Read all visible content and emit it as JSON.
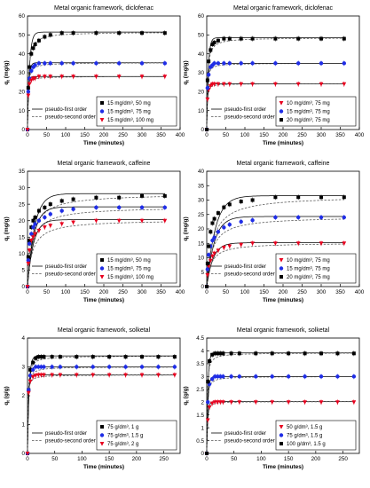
{
  "figure": {
    "panel_count": 6
  },
  "chart_data": [
    {
      "type": "scatter",
      "title": "Metal organic framework, diclofenac",
      "xlabel": "Time (minutes)",
      "ylabel": "qt (mg/g)",
      "ylabel_main": "q",
      "ylabel_sub": "t",
      "ylabel_unit": " (mg/g)",
      "xlim": [
        0,
        400
      ],
      "ylim": [
        0,
        60
      ],
      "xticks": [
        0,
        50,
        100,
        150,
        200,
        250,
        300,
        350,
        400
      ],
      "yticks": [
        0,
        10,
        20,
        30,
        40,
        50,
        60
      ],
      "legend_position": "bottom-right",
      "legend_models": [
        "pseudo-first order",
        "pseudo-second order"
      ],
      "series": [
        {
          "name": "15 mg/dm³, 50 mg",
          "marker": "square",
          "color": "#000000",
          "x": [
            0,
            2,
            5,
            10,
            15,
            20,
            30,
            45,
            60,
            90,
            120,
            180,
            240,
            300,
            360
          ],
          "y": [
            0,
            22,
            33,
            40,
            43,
            45,
            47,
            49,
            50,
            51,
            51,
            51,
            51,
            51,
            51
          ],
          "qe": 51.5,
          "k1": 0.19,
          "k2": 0.0075
        },
        {
          "name": "15 mg/dm³, 75 mg",
          "marker": "circle",
          "color": "#1f2de6",
          "x": [
            0,
            2,
            5,
            10,
            15,
            20,
            30,
            45,
            60,
            90,
            120,
            180,
            240,
            300,
            360
          ],
          "y": [
            0,
            20,
            27,
            31,
            33,
            34,
            35,
            35,
            35,
            35,
            35,
            35,
            35,
            35,
            35
          ],
          "qe": 35.3,
          "k1": 0.3,
          "k2": 0.018
        },
        {
          "name": "15 mg/dm³, 100 mg",
          "marker": "triangle-down",
          "color": "#e8001e",
          "x": [
            0,
            2,
            5,
            10,
            15,
            20,
            30,
            45,
            60,
            90,
            120,
            180,
            240,
            300,
            360
          ],
          "y": [
            0,
            18,
            24,
            26,
            27,
            27,
            28,
            28,
            28,
            28,
            28,
            28,
            28,
            28,
            28
          ],
          "qe": 28,
          "k1": 0.45,
          "k2": 0.035
        }
      ]
    },
    {
      "type": "scatter",
      "title": "Metal organic framework, diclofenac",
      "xlabel": "Time (minutes)",
      "ylabel": "qt (mg/g)",
      "ylabel_main": "q",
      "ylabel_sub": "t",
      "ylabel_unit": " (mg/g)",
      "xlim": [
        0,
        400
      ],
      "ylim": [
        0,
        60
      ],
      "xticks": [
        0,
        50,
        100,
        150,
        200,
        250,
        300,
        350,
        400
      ],
      "yticks": [
        0,
        10,
        20,
        30,
        40,
        50,
        60
      ],
      "legend_position": "bottom-right",
      "legend_models": [
        "pseudo-first order",
        "pseudo-second order"
      ],
      "series": [
        {
          "name": "10 mg/dm³, 75 mg",
          "marker": "triangle-down",
          "color": "#e8001e",
          "x": [
            0,
            2,
            5,
            10,
            15,
            20,
            30,
            45,
            60,
            90,
            120,
            180,
            240,
            300,
            360
          ],
          "y": [
            0,
            16,
            21,
            23,
            24,
            24,
            24,
            24,
            24,
            24,
            24,
            24,
            24,
            24,
            24
          ],
          "qe": 24.2,
          "k1": 0.45,
          "k2": 0.05
        },
        {
          "name": "15 mg/dm³, 75 mg",
          "marker": "circle",
          "color": "#1f2de6",
          "x": [
            0,
            2,
            5,
            10,
            15,
            20,
            30,
            45,
            60,
            90,
            120,
            180,
            240,
            300,
            360
          ],
          "y": [
            0,
            22,
            29,
            33,
            34,
            35,
            35,
            35,
            35,
            35,
            35,
            35,
            35,
            35,
            35
          ],
          "qe": 35,
          "k1": 0.35,
          "k2": 0.025
        },
        {
          "name": "20 mg/dm³, 75 mg",
          "marker": "square",
          "color": "#000000",
          "x": [
            0,
            2,
            5,
            10,
            15,
            20,
            30,
            45,
            60,
            90,
            120,
            180,
            240,
            300,
            360
          ],
          "y": [
            0,
            26,
            36,
            42,
            45,
            46,
            47,
            48,
            48,
            48,
            48,
            48,
            48,
            48,
            48
          ],
          "qe": 48.5,
          "k1": 0.25,
          "k2": 0.01
        }
      ]
    },
    {
      "type": "scatter",
      "title": "Metal organic framework, caffeine",
      "xlabel": "Time (minutes)",
      "ylabel": "qt (mg/g)",
      "ylabel_main": "q",
      "ylabel_sub": "t",
      "ylabel_unit": " (mg/g)",
      "xlim": [
        0,
        400
      ],
      "ylim": [
        0,
        35
      ],
      "xticks": [
        0,
        50,
        100,
        150,
        200,
        250,
        300,
        350,
        400
      ],
      "yticks": [
        0,
        5,
        10,
        15,
        20,
        25,
        30,
        35
      ],
      "legend_position": "bottom-right",
      "legend_models": [
        "pseudo-first order",
        "pseudo-second order"
      ],
      "series": [
        {
          "name": "15 mg/dm³, 50 mg",
          "marker": "square",
          "color": "#000000",
          "x": [
            0,
            2,
            5,
            10,
            15,
            20,
            30,
            45,
            60,
            90,
            120,
            180,
            240,
            300,
            360
          ],
          "y": [
            0,
            9,
            14,
            18,
            20,
            21,
            23,
            24,
            25,
            26,
            26.5,
            27,
            27,
            27.5,
            27.5
          ],
          "qe": 28.2,
          "k1": 0.055,
          "k2": 0.003
        },
        {
          "name": "15 mg/dm³, 75 mg",
          "marker": "circle",
          "color": "#1f2de6",
          "x": [
            0,
            2,
            5,
            10,
            15,
            20,
            30,
            45,
            60,
            90,
            120,
            180,
            240,
            300,
            360
          ],
          "y": [
            0,
            8,
            13,
            16,
            18,
            19,
            20,
            21,
            22,
            23,
            23.5,
            24,
            24,
            24,
            24
          ],
          "qe": 24.2,
          "k1": 0.06,
          "k2": 0.0035
        },
        {
          "name": "15 mg/dm³, 100 mg",
          "marker": "triangle-down",
          "color": "#e8001e",
          "x": [
            0,
            2,
            5,
            10,
            15,
            20,
            30,
            45,
            60,
            90,
            120,
            180,
            240,
            300,
            360
          ],
          "y": [
            0,
            7,
            11,
            14,
            15,
            16,
            17,
            18,
            18.5,
            19,
            19.5,
            20,
            20,
            20,
            20
          ],
          "qe": 20.3,
          "k1": 0.065,
          "k2": 0.004
        }
      ]
    },
    {
      "type": "scatter",
      "title": "Metal organic framework, caffeine",
      "xlabel": "Time (minutes)",
      "ylabel": "qt (mg/g)",
      "ylabel_main": "q",
      "ylabel_sub": "t",
      "ylabel_unit": " (mg/g)",
      "xlim": [
        0,
        400
      ],
      "ylim": [
        0,
        40
      ],
      "xticks": [
        0,
        50,
        100,
        150,
        200,
        250,
        300,
        350,
        400
      ],
      "yticks": [
        0,
        5,
        10,
        15,
        20,
        25,
        30,
        35,
        40
      ],
      "legend_position": "bottom-right",
      "legend_models": [
        "pseudo-first order",
        "pseudo-second order"
      ],
      "series": [
        {
          "name": "10 mg/dm³, 75 mg",
          "marker": "triangle-down",
          "color": "#e8001e",
          "x": [
            0,
            2,
            5,
            10,
            15,
            20,
            30,
            45,
            60,
            90,
            120,
            180,
            240,
            300,
            360
          ],
          "y": [
            0,
            4,
            7,
            9,
            10.5,
            11.5,
            12.5,
            13.5,
            14,
            14.5,
            15,
            15,
            15,
            15,
            15
          ],
          "qe": 15.2,
          "k1": 0.06,
          "k2": 0.006
        },
        {
          "name": "15 mg/dm³, 75 mg",
          "marker": "circle",
          "color": "#1f2de6",
          "x": [
            0,
            2,
            5,
            10,
            15,
            20,
            30,
            45,
            60,
            90,
            120,
            180,
            240,
            300,
            360
          ],
          "y": [
            0,
            6,
            11,
            14,
            16,
            17,
            19,
            20.5,
            21.5,
            22.5,
            23,
            24,
            24,
            24,
            24
          ],
          "qe": 24.3,
          "k1": 0.05,
          "k2": 0.003
        },
        {
          "name": "20 mg/dm³, 75 mg",
          "marker": "square",
          "color": "#000000",
          "x": [
            0,
            2,
            5,
            10,
            15,
            20,
            30,
            45,
            60,
            90,
            120,
            180,
            240,
            300,
            360
          ],
          "y": [
            0,
            8,
            14,
            19,
            22,
            23.5,
            25.5,
            27.5,
            28.5,
            29.5,
            30,
            31,
            31,
            31,
            31
          ],
          "qe": 31.5,
          "k1": 0.045,
          "k2": 0.002
        }
      ]
    },
    {
      "type": "scatter",
      "title": "Metal organic framework, solketal",
      "xlabel": "Time (minutes)",
      "ylabel": "qt (g/g)",
      "ylabel_main": "q",
      "ylabel_sub": "t",
      "ylabel_unit": " (g/g)",
      "xlim": [
        0,
        280
      ],
      "ylim": [
        0,
        4
      ],
      "xticks": [
        0,
        50,
        100,
        150,
        200,
        250
      ],
      "yticks": [
        0,
        1,
        2,
        3,
        4
      ],
      "legend_position": "bottom-right",
      "legend_models": [
        "pseudo-first order",
        "pseudo-second order"
      ],
      "series": [
        {
          "name": "75 g/dm³, 1 g",
          "marker": "square",
          "color": "#000000",
          "x": [
            0,
            2,
            5,
            10,
            15,
            20,
            25,
            30,
            45,
            60,
            90,
            120,
            150,
            180,
            210,
            240,
            270
          ],
          "y": [
            0,
            2.2,
            2.9,
            3.15,
            3.3,
            3.35,
            3.35,
            3.35,
            3.35,
            3.35,
            3.35,
            3.35,
            3.35,
            3.35,
            3.35,
            3.35,
            3.35
          ],
          "qe": 3.38,
          "k1": 0.35,
          "k2": 0.3
        },
        {
          "name": "75 g/dm³, 1.5 g",
          "marker": "circle",
          "color": "#1f2de6",
          "x": [
            0,
            2,
            5,
            10,
            15,
            20,
            25,
            30,
            45,
            60,
            90,
            120,
            150,
            180,
            210,
            240,
            270
          ],
          "y": [
            0,
            2.2,
            2.7,
            2.9,
            3.0,
            3.0,
            3.0,
            3.0,
            3.0,
            3.0,
            3.0,
            3.0,
            3.0,
            3.0,
            3.0,
            3.0,
            3.0
          ],
          "qe": 3.0,
          "k1": 0.45,
          "k2": 0.4
        },
        {
          "name": "75 g/dm³, 2 g",
          "marker": "triangle-down",
          "color": "#e8001e",
          "x": [
            0,
            2,
            5,
            10,
            15,
            20,
            25,
            30,
            45,
            60,
            90,
            120,
            150,
            180,
            210,
            240,
            270
          ],
          "y": [
            0,
            2.1,
            2.5,
            2.65,
            2.7,
            2.72,
            2.72,
            2.72,
            2.72,
            2.72,
            2.72,
            2.72,
            2.72,
            2.72,
            2.72,
            2.72,
            2.72
          ],
          "qe": 2.72,
          "k1": 0.55,
          "k2": 0.6
        }
      ]
    },
    {
      "type": "scatter",
      "title": "Metal organic framework, solketal",
      "xlabel": "Time (minutes)",
      "ylabel": "qt (g/g)",
      "ylabel_main": "q",
      "ylabel_sub": "t",
      "ylabel_unit": " (g/g)",
      "xlim": [
        0,
        280
      ],
      "ylim": [
        0,
        4.5
      ],
      "xticks": [
        0,
        50,
        100,
        150,
        200,
        250
      ],
      "yticks": [
        0,
        0.5,
        1,
        1.5,
        2,
        2.5,
        3,
        3.5,
        4,
        4.5
      ],
      "legend_position": "bottom-right",
      "legend_models": [
        "pseudo-first order",
        "pseudo-second order"
      ],
      "series": [
        {
          "name": "50 g/dm³, 1.5 g",
          "marker": "triangle-down",
          "color": "#e8001e",
          "x": [
            0,
            2,
            5,
            10,
            15,
            20,
            25,
            30,
            45,
            60,
            90,
            120,
            150,
            180,
            210,
            240,
            270
          ],
          "y": [
            0,
            1.3,
            1.8,
            1.95,
            2.0,
            2.0,
            2.0,
            2.0,
            2.0,
            2.0,
            2.0,
            2.0,
            2.0,
            2.0,
            2.0,
            2.0,
            2.0
          ],
          "qe": 2.02,
          "k1": 0.5,
          "k2": 0.8
        },
        {
          "name": "75 g/dm³, 1.5 g",
          "marker": "circle",
          "color": "#1f2de6",
          "x": [
            0,
            2,
            5,
            10,
            15,
            20,
            25,
            30,
            45,
            60,
            90,
            120,
            150,
            180,
            210,
            240,
            270
          ],
          "y": [
            0,
            2.0,
            2.7,
            2.9,
            3.0,
            3.0,
            3.0,
            3.0,
            3.0,
            3.0,
            3.0,
            3.0,
            3.0,
            3.0,
            3.0,
            3.0,
            3.0
          ],
          "qe": 3.0,
          "k1": 0.45,
          "k2": 0.4
        },
        {
          "name": "100 g/dm³, 1.5 g",
          "marker": "square",
          "color": "#000000",
          "x": [
            0,
            2,
            5,
            10,
            15,
            20,
            25,
            30,
            45,
            60,
            90,
            120,
            150,
            180,
            210,
            240,
            270
          ],
          "y": [
            0,
            2.8,
            3.6,
            3.85,
            3.9,
            3.9,
            3.9,
            3.9,
            3.9,
            3.9,
            3.9,
            3.9,
            3.9,
            3.9,
            3.9,
            3.9,
            3.9
          ],
          "qe": 3.92,
          "k1": 0.45,
          "k2": 0.3
        }
      ]
    }
  ]
}
